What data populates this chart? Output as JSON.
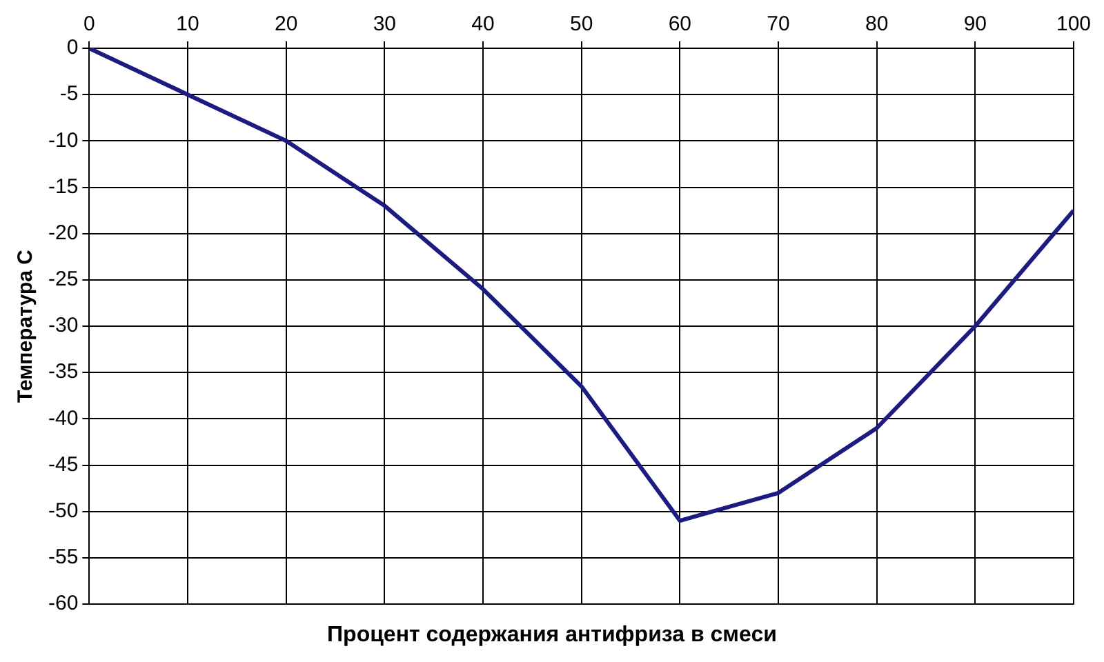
{
  "chart_data": {
    "type": "line",
    "xlabel": "Процент содержания антифриза в смеси",
    "ylabel": "Температура С",
    "x": [
      0,
      10,
      20,
      30,
      40,
      50,
      60,
      70,
      80,
      90,
      100
    ],
    "series": [
      {
        "color": "#1c1c80",
        "values": [
          0,
          -5,
          -10,
          -17,
          -26,
          -36.5,
          -51,
          -48,
          -41,
          -30,
          -17.5
        ]
      }
    ],
    "xlim": [
      0,
      100
    ],
    "xticks": [
      0,
      10,
      20,
      30,
      40,
      50,
      60,
      70,
      80,
      90,
      100
    ],
    "ylim": [
      -60,
      0
    ],
    "yticks": [
      0,
      -5,
      -10,
      -15,
      -20,
      -25,
      -30,
      -35,
      -40,
      -45,
      -50,
      -55,
      -60
    ],
    "grid": true,
    "legend": false,
    "marker": "none",
    "line_style": "solid"
  }
}
